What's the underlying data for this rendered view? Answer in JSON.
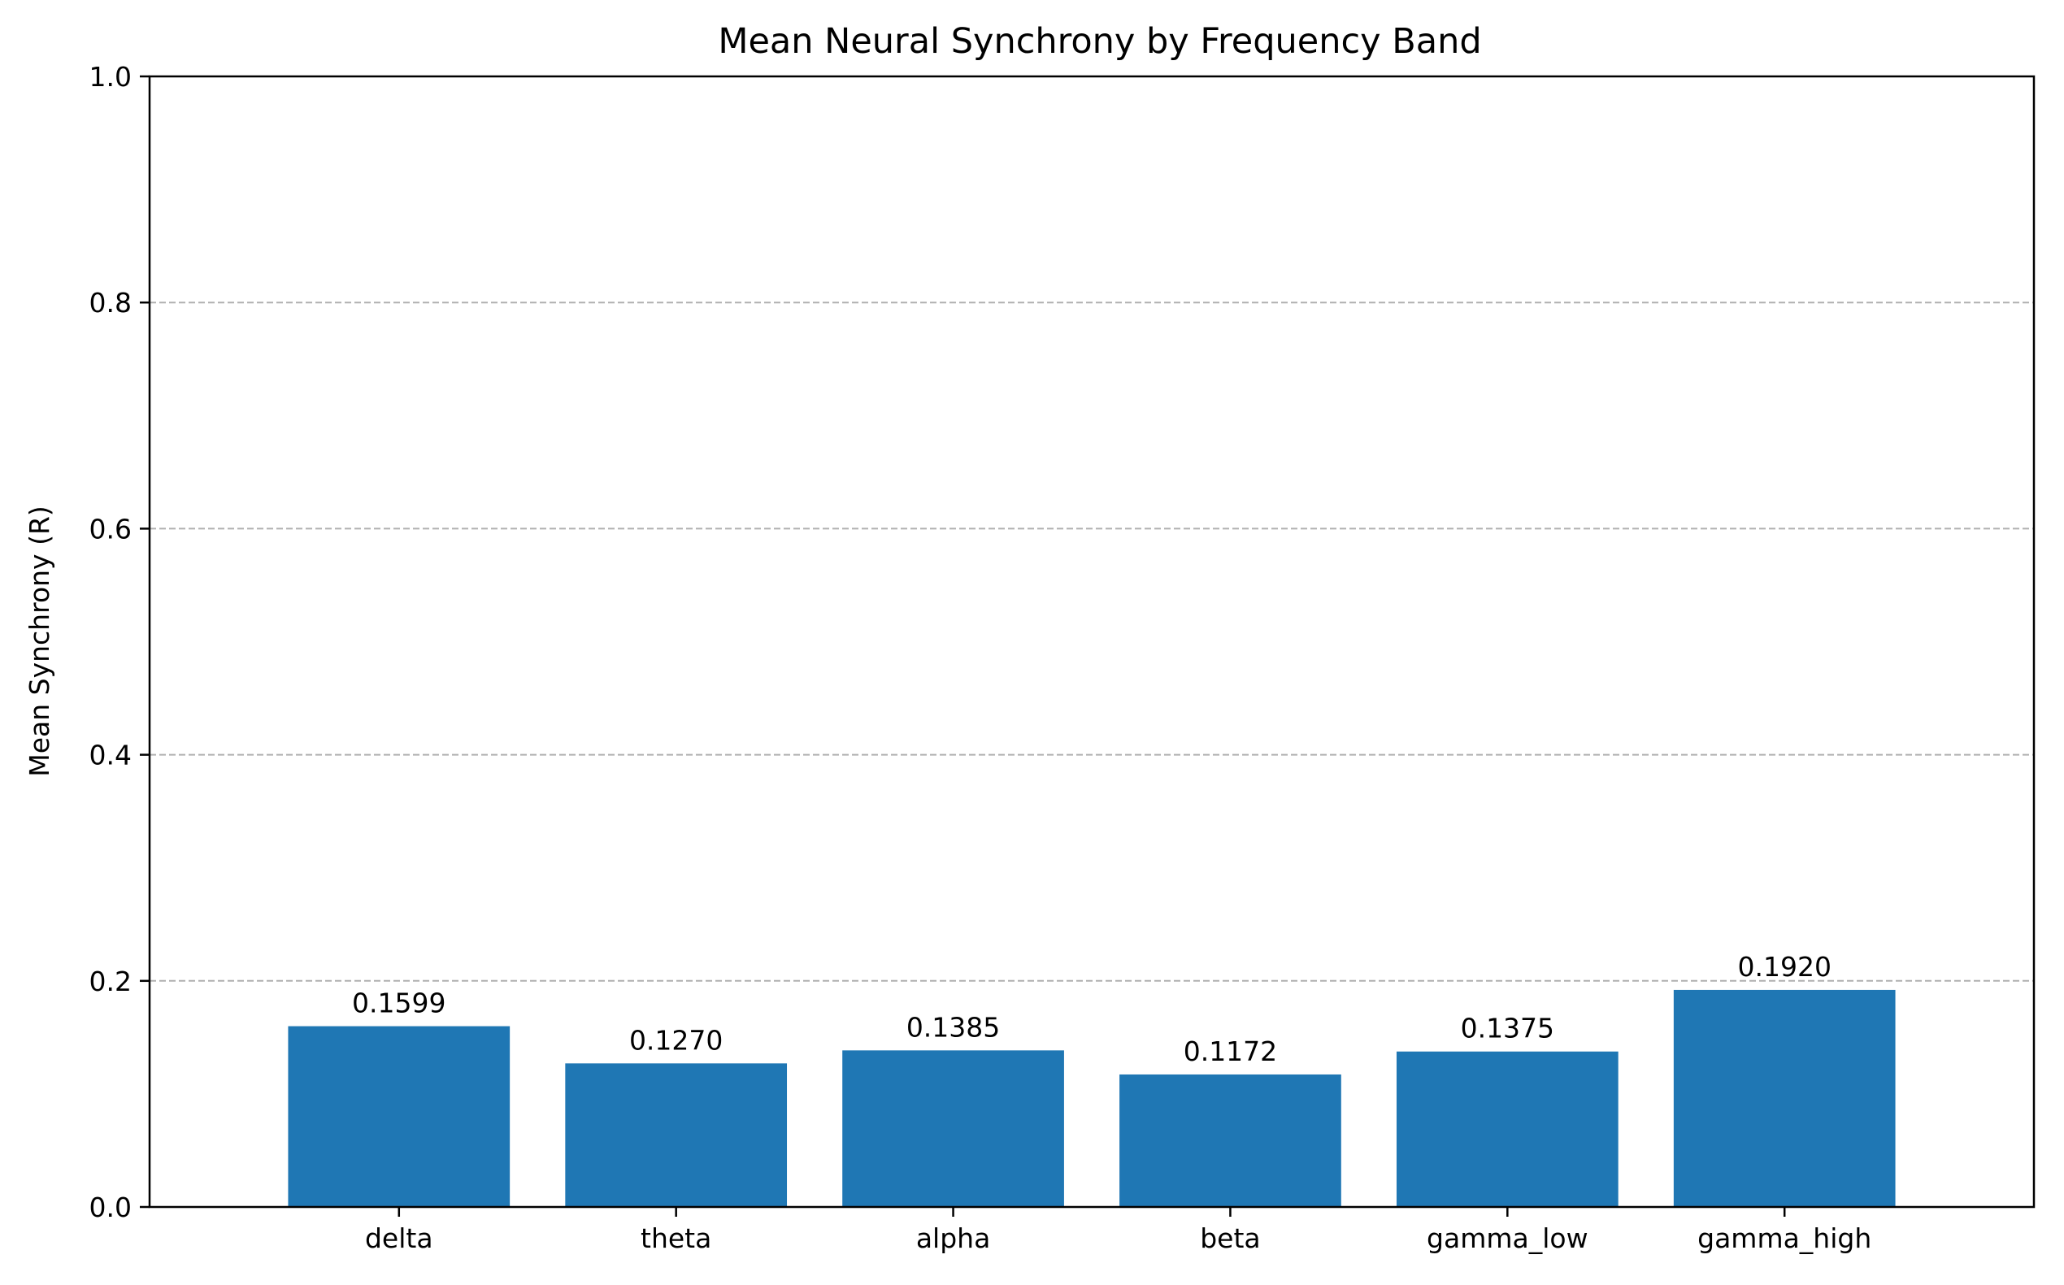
{
  "chart_data": {
    "type": "bar",
    "title": "Mean Neural Synchrony by Frequency Band",
    "xlabel": "",
    "ylabel": "Mean Synchrony (R)",
    "categories": [
      "delta",
      "theta",
      "alpha",
      "beta",
      "gamma_low",
      "gamma_high"
    ],
    "values": [
      0.1599,
      0.127,
      0.1385,
      0.1172,
      0.1375,
      0.192
    ],
    "value_labels": [
      "0.1599",
      "0.1270",
      "0.1385",
      "0.1172",
      "0.1375",
      "0.1920"
    ],
    "ylim": [
      0,
      1.0
    ],
    "yticks": [
      0.0,
      0.2,
      0.4,
      0.6,
      0.8,
      1.0
    ],
    "ytick_labels": [
      "0.0",
      "0.2",
      "0.4",
      "0.6",
      "0.8",
      "1.0"
    ],
    "grid": "y-dashed",
    "legend": "none",
    "bar_color": "#1f77b4",
    "grid_color": "#b0b0b0"
  }
}
